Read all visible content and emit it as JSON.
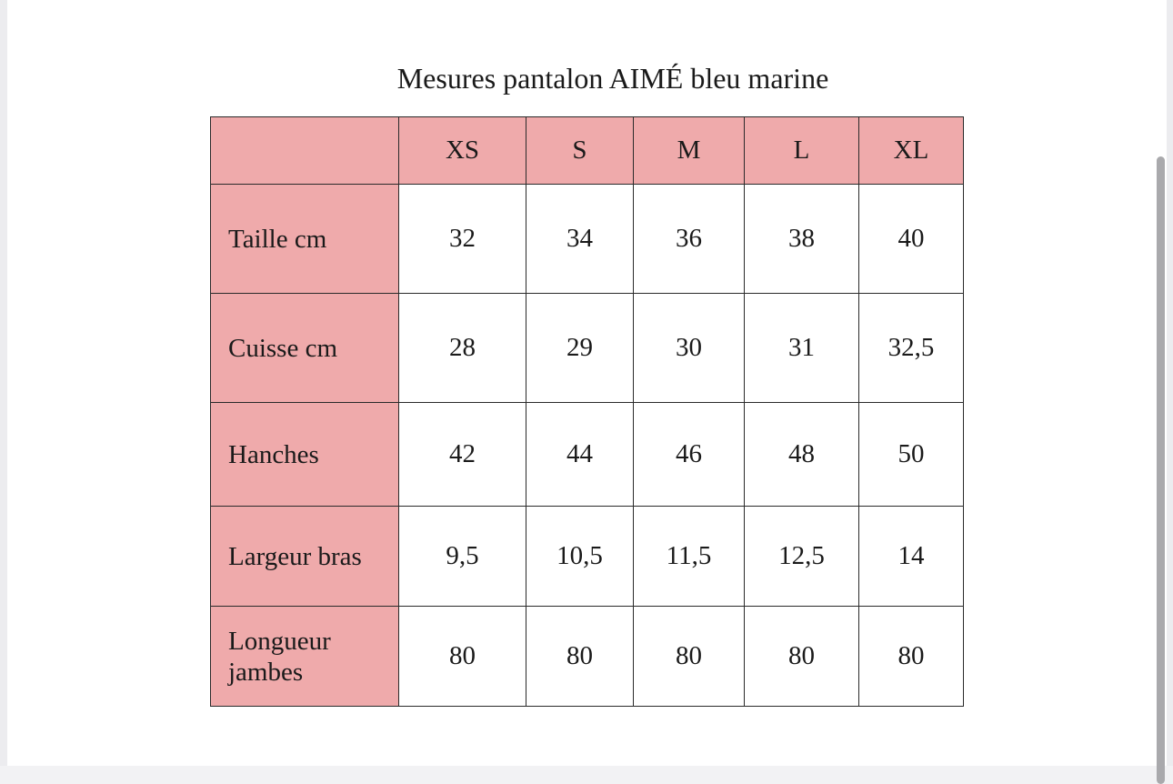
{
  "title": "Mesures pantalon AIMÉ bleu marine",
  "table": {
    "corner": "",
    "sizes": [
      "XS",
      "S",
      "M",
      "L",
      "XL"
    ],
    "rows": [
      {
        "label": "Taille cm",
        "values": [
          "32",
          "34",
          "36",
          "38",
          "40"
        ]
      },
      {
        "label": "Cuisse cm",
        "values": [
          "28",
          "29",
          "30",
          "31",
          "32,5"
        ]
      },
      {
        "label": "Hanches",
        "values": [
          "42",
          "44",
          "46",
          "48",
          "50"
        ]
      },
      {
        "label": "Largeur bras",
        "values": [
          "9,5",
          "10,5",
          "11,5",
          "12,5",
          "14"
        ]
      },
      {
        "label": "Longueur jambes",
        "values": [
          "80",
          "80",
          "80",
          "80",
          "80"
        ]
      }
    ]
  },
  "colors": {
    "header_fill": "#efaaab",
    "border": "#2a2a2a",
    "text": "#1a1a1a"
  }
}
